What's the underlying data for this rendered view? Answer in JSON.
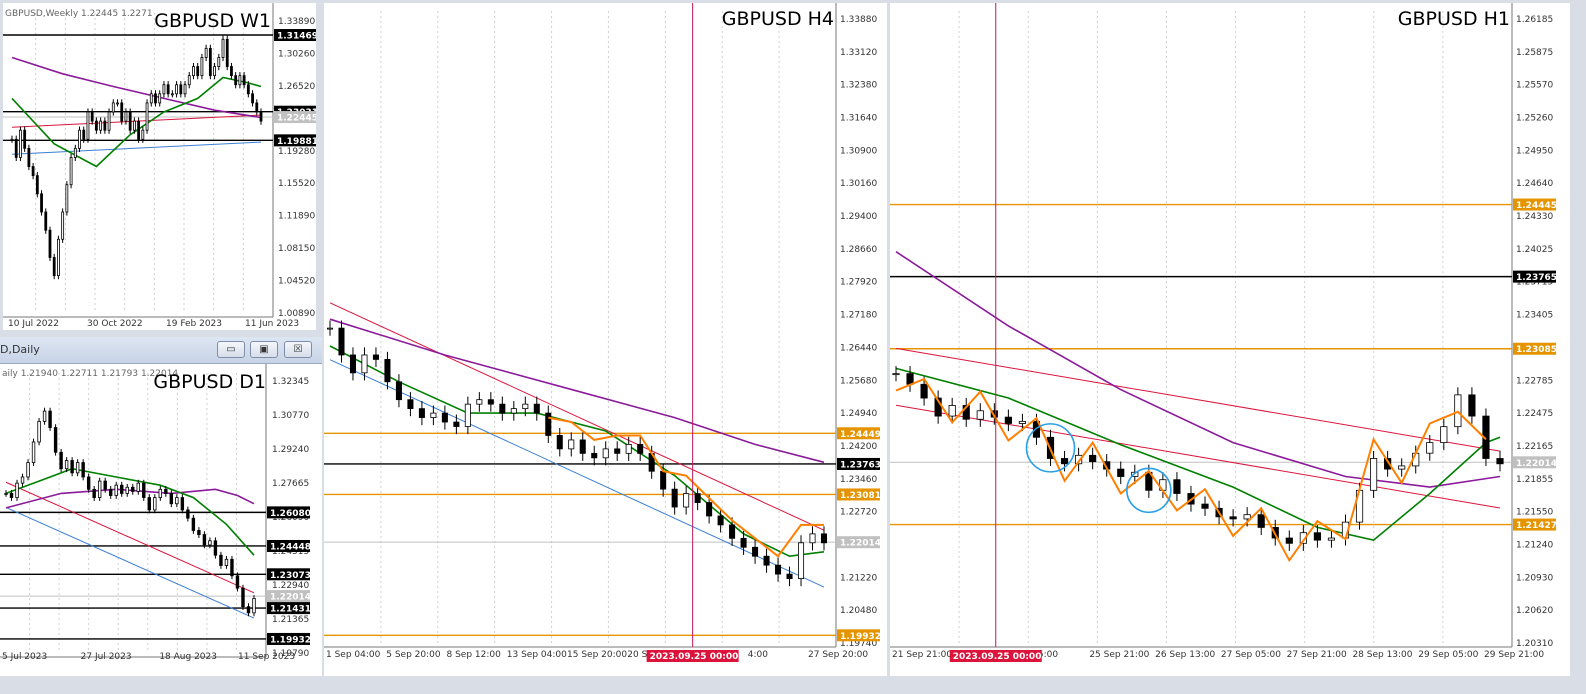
{
  "windows": {
    "w1": {
      "title_label": "GBPUSD W1",
      "header": "GBPUSD,Weekly  1.22445 1.2271"
    },
    "d1": {
      "title_label": "GBPUSD D1",
      "window_title": "D,Daily",
      "header": "aily  1.21940 1.22711 1.21793 1.22014"
    },
    "h4": {
      "title_label": "GBPUSD H4",
      "vline_label": "2023.09.25 00:00"
    },
    "h1": {
      "title_label": "GBPUSD H1",
      "vline_label": "2023.09.25 00:00"
    }
  },
  "window_buttons": {
    "minimize": "▭",
    "restore": "▣",
    "close": "☒"
  },
  "colors": {
    "bull": "#000000",
    "bear": "#000000",
    "ma_fast": "#008000",
    "ma_slow": "#8b1a9b",
    "trend": "#dc143c",
    "channel": "#3a7fd5",
    "level_orange": "#e59400",
    "zigzag": "#ff8000",
    "vline": "#c2185b",
    "current": "#c0c0c0",
    "circle": "#2aa0e6"
  },
  "chart_data": [
    {
      "id": "w1",
      "type": "candlestick",
      "title": "GBPUSD W1",
      "ylim": [
        1.0089,
        1.3389
      ],
      "y_ticks": [
        "1.33890",
        "1.30260",
        "1.26520",
        "1.22910",
        "1.19280",
        "1.15520",
        "1.11890",
        "1.08150",
        "1.04520",
        "1.00890"
      ],
      "x_ticks": [
        "10 Jul 2022",
        "30 Oct 2022",
        "19 Feb 2023",
        "11 Jun 2023"
      ],
      "levels": [
        {
          "value": 1.31469,
          "label": "1.31469",
          "color": "#000000"
        },
        {
          "value": 1.23031,
          "label": "1.23031",
          "color": "#000000"
        },
        {
          "value": 1.22445,
          "label": "1.22445",
          "color": "#c0c0c0"
        },
        {
          "value": 1.19881,
          "label": "1.19881",
          "color": "#000000"
        }
      ],
      "close_path": [
        1.2,
        1.18,
        1.21,
        1.19,
        1.17,
        1.16,
        1.14,
        1.12,
        1.1,
        1.07,
        1.05,
        1.09,
        1.12,
        1.15,
        1.18,
        1.19,
        1.21,
        1.2,
        1.23,
        1.22,
        1.21,
        1.22,
        1.21,
        1.23,
        1.24,
        1.24,
        1.22,
        1.23,
        1.21,
        1.22,
        1.2,
        1.21,
        1.24,
        1.25,
        1.24,
        1.25,
        1.26,
        1.25,
        1.25,
        1.26,
        1.25,
        1.26,
        1.27,
        1.28,
        1.27,
        1.29,
        1.3,
        1.27,
        1.28,
        1.29,
        1.31,
        1.28,
        1.27,
        1.26,
        1.27,
        1.26,
        1.25,
        1.24,
        1.23,
        1.22
      ],
      "ma_fast": [
        [
          0,
          1.245
        ],
        [
          10,
          1.195
        ],
        [
          20,
          1.17
        ],
        [
          28,
          1.205
        ],
        [
          36,
          1.23
        ],
        [
          44,
          1.245
        ],
        [
          50,
          1.268
        ],
        [
          56,
          1.262
        ],
        [
          59,
          1.258
        ]
      ],
      "ma_slow": [
        [
          0,
          1.29
        ],
        [
          12,
          1.272
        ],
        [
          24,
          1.258
        ],
        [
          36,
          1.245
        ],
        [
          48,
          1.232
        ],
        [
          59,
          1.224
        ]
      ]
    },
    {
      "id": "d1",
      "type": "candlestick",
      "title": "GBPUSD D1",
      "ylim": [
        1.1925,
        1.3285
      ],
      "y_ticks": [
        "1.32345",
        "1.30770",
        "1.29240",
        "1.27665",
        "1.26090",
        "1.24515",
        "1.22940",
        "1.21365",
        "1.19790"
      ],
      "x_ticks": [
        "5 Jul 2023",
        "27 Jul 2023",
        "18 Aug 2023",
        "11 Sep 2023"
      ],
      "levels": [
        {
          "value": 1.2608,
          "label": "1.26080",
          "color": "#000000"
        },
        {
          "value": 1.24448,
          "label": "1.24448",
          "color": "#000000"
        },
        {
          "value": 1.23073,
          "label": "1.23073",
          "color": "#000000"
        },
        {
          "value": 1.22014,
          "label": "1.22014",
          "color": "#c0c0c0"
        },
        {
          "value": 1.21431,
          "label": "1.21431",
          "color": "#000000"
        },
        {
          "value": 1.19932,
          "label": "1.19932",
          "color": "#000000"
        }
      ],
      "close_path": [
        1.27,
        1.268,
        1.275,
        1.278,
        1.285,
        1.295,
        1.305,
        1.31,
        1.302,
        1.29,
        1.282,
        1.286,
        1.28,
        1.285,
        1.278,
        1.272,
        1.268,
        1.276,
        1.272,
        1.269,
        1.274,
        1.27,
        1.273,
        1.271,
        1.275,
        1.268,
        1.262,
        1.268,
        1.272,
        1.27,
        1.265,
        1.268,
        1.262,
        1.258,
        1.252,
        1.25,
        1.245,
        1.247,
        1.24,
        1.235,
        1.238,
        1.23,
        1.224,
        1.215,
        1.212,
        1.219
      ],
      "ma_fast": [
        [
          0,
          1.27
        ],
        [
          6,
          1.276
        ],
        [
          12,
          1.282
        ],
        [
          20,
          1.278
        ],
        [
          28,
          1.274
        ],
        [
          34,
          1.268
        ],
        [
          40,
          1.255
        ],
        [
          45,
          1.24
        ]
      ],
      "ma_slow": [
        [
          0,
          1.263
        ],
        [
          10,
          1.27
        ],
        [
          20,
          1.272
        ],
        [
          30,
          1.27
        ],
        [
          38,
          1.272
        ],
        [
          42,
          1.269
        ],
        [
          45,
          1.265
        ]
      ]
    },
    {
      "id": "h4",
      "type": "candlestick",
      "title": "GBPUSD H4",
      "ylim": [
        1.1976,
        1.3389
      ],
      "y_ticks": [
        "1.33880",
        "1.33120",
        "1.32380",
        "1.31640",
        "1.30900",
        "1.30160",
        "1.29400",
        "1.28660",
        "1.27920",
        "1.27180",
        "1.26440",
        "1.25680",
        "1.24940",
        "1.24200",
        "1.23460",
        "1.22720",
        "1.21980",
        "1.21220",
        "1.20480",
        "1.19740"
      ],
      "x_ticks": [
        "1 Sep 04:00",
        "5 Sep 20:00",
        "8 Sep 12:00",
        "13 Sep 04:00",
        "15 Sep 20:00",
        "20 Sep",
        "2023.09.25 00:00",
        "4:00",
        "27 Sep 20:00"
      ],
      "levels": [
        {
          "value": 1.24449,
          "label": "1.24449",
          "color": "#e59400"
        },
        {
          "value": 1.23763,
          "label": "1.23763",
          "color": "#000000"
        },
        {
          "value": 1.23081,
          "label": "1.23081",
          "color": "#e59400"
        },
        {
          "value": 1.22014,
          "label": "1.22014",
          "color": "#c0c0c0"
        },
        {
          "value": 1.19932,
          "label": "1.19932",
          "color": "#e59400"
        }
      ],
      "close_path": [
        1.268,
        1.262,
        1.258,
        1.262,
        1.261,
        1.256,
        1.252,
        1.25,
        1.248,
        1.249,
        1.247,
        1.246,
        1.251,
        1.252,
        1.251,
        1.249,
        1.25,
        1.251,
        1.249,
        1.244,
        1.241,
        1.243,
        1.24,
        1.239,
        1.241,
        1.24,
        1.242,
        1.24,
        1.236,
        1.232,
        1.228,
        1.231,
        1.229,
        1.226,
        1.224,
        1.221,
        1.219,
        1.217,
        1.215,
        1.213,
        1.212,
        1.22,
        1.222,
        1.22
      ],
      "ma_fast": [
        [
          0,
          1.264
        ],
        [
          6,
          1.256
        ],
        [
          12,
          1.249
        ],
        [
          18,
          1.249
        ],
        [
          24,
          1.245
        ],
        [
          30,
          1.235
        ],
        [
          36,
          1.222
        ],
        [
          40,
          1.217
        ],
        [
          43,
          1.218
        ]
      ],
      "ma_slow": [
        [
          0,
          1.27
        ],
        [
          10,
          1.262
        ],
        [
          20,
          1.255
        ],
        [
          30,
          1.248
        ],
        [
          37,
          1.242
        ],
        [
          43,
          1.238
        ]
      ]
    },
    {
      "id": "h1",
      "type": "candlestick",
      "title": "GBPUSD H1",
      "ylim": [
        1.2031,
        1.2627
      ],
      "y_ticks": [
        "1.26185",
        "1.25875",
        "1.25570",
        "1.25260",
        "1.24950",
        "1.24640",
        "1.24330",
        "1.24025",
        "1.23715",
        "1.23405",
        "1.23095",
        "1.22785",
        "1.22475",
        "1.22165",
        "1.21855",
        "1.21550",
        "1.21240",
        "1.20930",
        "1.20620",
        "1.20310"
      ],
      "x_ticks": [
        "21 Sep 21:00",
        "2023.09.25 00:00",
        "p 05:00",
        "25 Sep 21:00",
        "26 Sep 13:00",
        "27 Sep 05:00",
        "27 Sep 21:00",
        "28 Sep 13:00",
        "29 Sep 05:00",
        "29 Sep 21:00"
      ],
      "levels": [
        {
          "value": 1.24445,
          "label": "1.24445",
          "color": "#e59400"
        },
        {
          "value": 1.23765,
          "label": "1.23765",
          "color": "#000000"
        },
        {
          "value": 1.23085,
          "label": "1.23085",
          "color": "#e59400"
        },
        {
          "value": 1.22014,
          "label": "1.22014",
          "color": "#c0c0c0"
        },
        {
          "value": 1.21427,
          "label": "1.21427",
          "color": "#e59400"
        }
      ],
      "close_path": [
        1.2285,
        1.2275,
        1.2262,
        1.2245,
        1.2255,
        1.2242,
        1.225,
        1.2244,
        1.2238,
        1.224,
        1.2225,
        1.2205,
        1.22,
        1.2208,
        1.2202,
        1.2195,
        1.2188,
        1.2192,
        1.2175,
        1.2185,
        1.2172,
        1.2162,
        1.2158,
        1.215,
        1.2148,
        1.2152,
        1.214,
        1.213,
        1.2125,
        1.2135,
        1.2128,
        1.213,
        1.2145,
        1.2175,
        1.2205,
        1.2195,
        1.2198,
        1.221,
        1.222,
        1.2235,
        1.2265,
        1.2245,
        1.2205,
        1.22
      ],
      "ma_fast": [
        [
          0,
          1.229
        ],
        [
          8,
          1.2262
        ],
        [
          16,
          1.2218
        ],
        [
          24,
          1.2178
        ],
        [
          30,
          1.214
        ],
        [
          34,
          1.2128
        ],
        [
          38,
          1.2172
        ],
        [
          42,
          1.222
        ],
        [
          43,
          1.2225
        ]
      ],
      "ma_slow": [
        [
          0,
          1.24
        ],
        [
          8,
          1.233
        ],
        [
          16,
          1.227
        ],
        [
          24,
          1.222
        ],
        [
          32,
          1.2188
        ],
        [
          38,
          1.2178
        ],
        [
          43,
          1.2188
        ]
      ]
    }
  ]
}
